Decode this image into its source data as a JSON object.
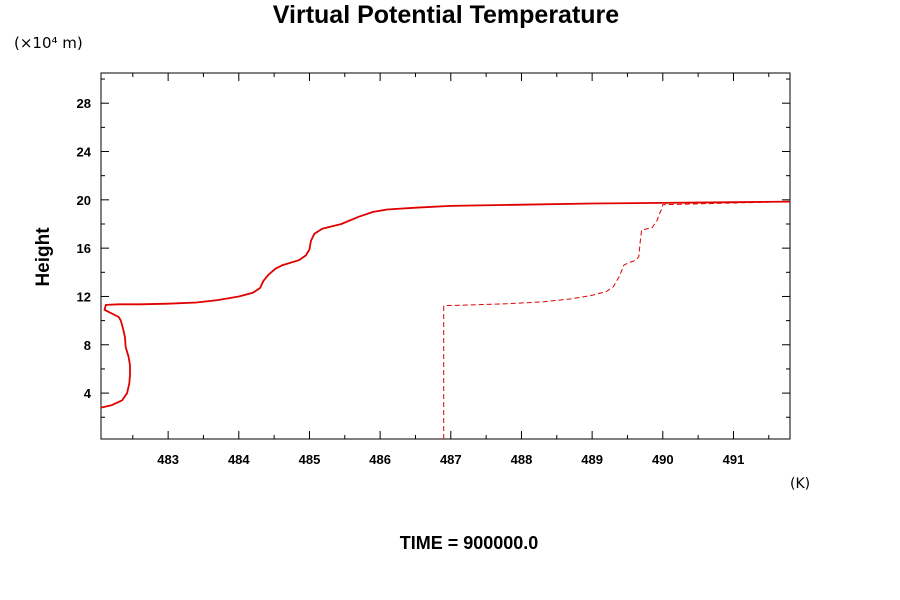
{
  "chart_data": {
    "type": "line",
    "title": "Virtual Potential Temperature",
    "ylabel": "Height",
    "y_unit": "(×10⁴ m)",
    "x_unit": "(K)",
    "footer": "TIME = 900000.0",
    "xlim": [
      482.05,
      491.8
    ],
    "ylim": [
      0.2,
      30.5
    ],
    "x_ticks": [
      483,
      484,
      485,
      486,
      487,
      488,
      489,
      490,
      491
    ],
    "y_ticks": [
      4,
      8,
      12,
      16,
      20,
      24,
      28
    ],
    "grid": false,
    "legend": "none",
    "series": [
      {
        "style": "solid",
        "color": "#e00000",
        "x": [
          482.05,
          482.2,
          482.35,
          482.42,
          482.45,
          482.46,
          482.46,
          482.44,
          482.4,
          482.39,
          482.36,
          482.33,
          482.3,
          482.1,
          482.12,
          482.3,
          482.6,
          483.0,
          483.4,
          483.7,
          484.0,
          484.2,
          484.3,
          484.35,
          484.42,
          484.52,
          484.62,
          484.85,
          484.95,
          485.0,
          485.02,
          485.07,
          485.18,
          485.45,
          485.7,
          485.9,
          486.1,
          486.5,
          487.0,
          488.0,
          489.0,
          490.0,
          491.0,
          491.8
        ],
        "y": [
          2.8,
          3.0,
          3.4,
          4.0,
          4.8,
          5.5,
          6.3,
          7.0,
          7.8,
          8.6,
          9.4,
          10.0,
          10.3,
          10.9,
          11.3,
          11.35,
          11.35,
          11.4,
          11.5,
          11.7,
          12.0,
          12.3,
          12.7,
          13.3,
          13.8,
          14.3,
          14.6,
          15.0,
          15.4,
          15.9,
          16.6,
          17.2,
          17.6,
          18.0,
          18.6,
          19.0,
          19.2,
          19.35,
          19.5,
          19.6,
          19.7,
          19.75,
          19.8,
          19.85
        ]
      },
      {
        "style": "dashed",
        "color": "#e00000",
        "x": [
          486.9,
          486.9,
          486.95,
          487.3,
          487.8,
          488.3,
          488.7,
          489.0,
          489.2,
          489.3,
          489.38,
          489.45,
          489.52,
          489.62,
          489.66,
          489.68,
          489.7,
          489.85,
          489.92,
          489.95,
          489.98,
          490.0,
          491.8
        ],
        "y": [
          0.2,
          11.2,
          11.25,
          11.3,
          11.4,
          11.55,
          11.8,
          12.1,
          12.4,
          12.8,
          13.6,
          14.6,
          14.8,
          15.0,
          15.3,
          16.5,
          17.5,
          17.7,
          18.3,
          18.8,
          19.2,
          19.6,
          19.85
        ]
      }
    ]
  }
}
